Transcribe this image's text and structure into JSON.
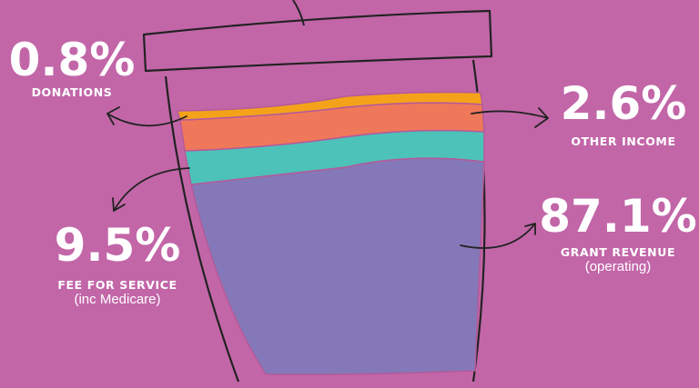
{
  "colors": {
    "background": "#c266a8",
    "donations": "#f5a21b",
    "other_income": "#f0785a",
    "fee_for_service": "#4cc2b8",
    "grant_revenue": "#8578b8",
    "outline": "#222222"
  },
  "segments": [
    {
      "key": "grant",
      "value": "87.1%",
      "caption": "GRANT REVENUE",
      "note": "(operating)"
    },
    {
      "key": "fee",
      "value": "9.5%",
      "caption": "FEE FOR SERVICE",
      "note": "(inc Medicare)"
    },
    {
      "key": "other",
      "value": "2.6%",
      "caption": "OTHER INCOME"
    },
    {
      "key": "donations",
      "value": "0.8%",
      "caption": "DONATIONS"
    }
  ]
}
